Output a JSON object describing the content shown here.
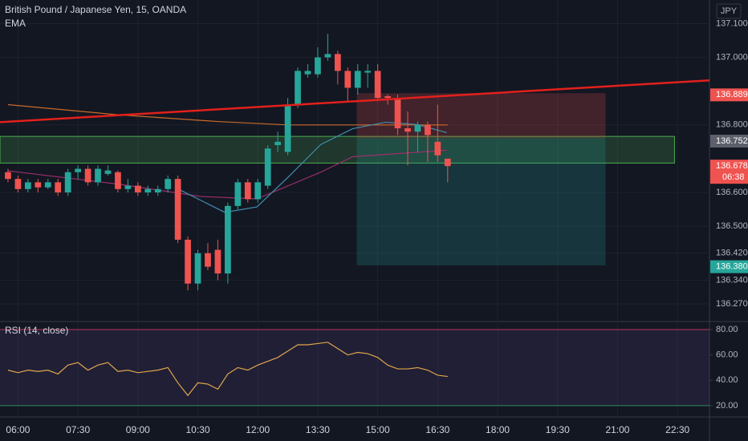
{
  "chart_data": {
    "type": "candlestick",
    "title": "British Pound / Japanese Yen, 15, OANDA",
    "indicator": "EMA",
    "currency": "JPY",
    "up_color": "#26a69a",
    "down_color": "#ef5350",
    "x": [
      -1,
      0,
      1,
      2,
      3,
      4,
      5,
      6,
      7,
      8,
      9,
      10,
      11,
      12,
      13,
      14,
      15,
      16,
      17,
      18,
      19,
      20,
      21,
      22,
      23,
      24,
      25,
      26,
      27,
      28,
      29,
      30,
      31,
      32,
      33,
      34,
      35,
      36,
      37,
      38,
      39,
      40,
      41,
      42,
      43
    ],
    "open": [
      136.66,
      136.64,
      136.61,
      136.63,
      136.615,
      136.63,
      136.6,
      136.66,
      136.67,
      136.63,
      136.655,
      136.66,
      136.61,
      136.62,
      136.6,
      136.6,
      136.61,
      136.64,
      136.46,
      136.33,
      136.42,
      136.43,
      136.36,
      136.56,
      136.63,
      136.58,
      136.62,
      136.74,
      136.72,
      136.86,
      136.95,
      136.95,
      137.0,
      137.01,
      136.96,
      136.91,
      136.955,
      136.96,
      136.885,
      136.88,
      136.79,
      136.78,
      136.8,
      136.75,
      136.7
    ],
    "high": [
      136.67,
      136.65,
      136.64,
      136.64,
      136.64,
      136.64,
      136.67,
      136.68,
      136.68,
      136.68,
      136.68,
      136.665,
      136.64,
      136.63,
      136.62,
      136.62,
      136.65,
      136.65,
      136.47,
      136.43,
      136.45,
      136.46,
      136.57,
      136.64,
      136.64,
      136.64,
      136.74,
      136.78,
      136.88,
      136.97,
      136.98,
      137.03,
      137.07,
      137.02,
      136.97,
      136.98,
      136.98,
      136.98,
      136.89,
      136.89,
      136.84,
      136.81,
      136.81,
      136.86,
      136.7
    ],
    "low": [
      136.63,
      136.6,
      136.6,
      136.6,
      136.61,
      136.59,
      136.59,
      136.64,
      136.62,
      136.62,
      136.65,
      136.6,
      136.6,
      136.59,
      136.59,
      136.59,
      136.6,
      136.45,
      136.31,
      136.31,
      136.37,
      136.34,
      136.33,
      136.55,
      136.57,
      136.57,
      136.61,
      136.72,
      136.71,
      136.85,
      136.94,
      136.94,
      136.99,
      136.92,
      136.87,
      136.89,
      136.91,
      136.87,
      136.86,
      136.77,
      136.68,
      136.72,
      136.69,
      136.69,
      136.63
    ],
    "close": [
      136.64,
      136.61,
      136.63,
      136.615,
      136.63,
      136.6,
      136.66,
      136.67,
      136.63,
      136.67,
      136.665,
      136.61,
      136.62,
      136.6,
      136.61,
      136.61,
      136.64,
      136.46,
      136.33,
      136.42,
      136.38,
      136.36,
      136.56,
      136.63,
      136.58,
      136.63,
      136.73,
      136.75,
      136.86,
      136.96,
      136.96,
      137.0,
      137.01,
      136.96,
      136.91,
      136.96,
      136.96,
      136.88,
      136.88,
      136.79,
      136.78,
      136.8,
      136.77,
      136.71,
      136.678
    ],
    "overlays": [
      {
        "color": "#c86a2a",
        "x": [
          -1,
          10,
          20,
          27,
          35,
          43
        ],
        "values": [
          136.86,
          136.83,
          136.81,
          136.8,
          136.8,
          136.8
        ]
      },
      {
        "color": "#9c2f6e",
        "x": [
          -1,
          10.2,
          18.3,
          23.9,
          30.3,
          33.5,
          42.9
        ],
        "values": [
          136.664,
          136.624,
          136.588,
          136.581,
          136.66,
          136.706,
          136.725
        ]
      },
      {
        "color": "#3f8fb0",
        "x": [
          15.9,
          20.7,
          23.9,
          27.1,
          30.3,
          33.5,
          36.8,
          40,
          42.9
        ],
        "values": [
          136.612,
          136.541,
          136.557,
          136.647,
          136.742,
          136.789,
          136.808,
          136.801,
          136.777
        ]
      }
    ],
    "trendline": {
      "color": "#e3201b",
      "x": [
        -1.8,
        69.2
      ],
      "values": [
        136.808,
        136.932
      ]
    },
    "zones": [
      {
        "fill": "rgba(76,175,80,0.22)",
        "stroke": "#4caf50",
        "x": [
          -1.8,
          65.7
        ],
        "y": [
          136.687,
          136.766
        ]
      },
      {
        "fill": "rgba(239,83,80,0.22)",
        "stroke": "none",
        "x": [
          33.9,
          58.8
        ],
        "y": [
          136.761,
          136.894
        ]
      },
      {
        "fill": "rgba(38,166,154,0.22)",
        "stroke": "none",
        "x": [
          33.9,
          58.8
        ],
        "y": [
          136.384,
          136.761
        ]
      }
    ],
    "price_labels": [
      {
        "value": 136.889,
        "label": "136.889",
        "color": "#ef5350"
      },
      {
        "value": 136.752,
        "label": "136.752",
        "color": "#5d606b"
      },
      {
        "value": 136.678,
        "label": "136.678",
        "color": "#ef5350",
        "countdown": "06:38"
      },
      {
        "value": 136.38,
        "label": "136.380",
        "color": "#26a69a"
      }
    ],
    "xlim": [
      -1.8,
      69.2
    ],
    "xticks": [
      {
        "value": 0,
        "label": "06:00"
      },
      {
        "value": 6,
        "label": "07:30"
      },
      {
        "value": 12,
        "label": "09:00"
      },
      {
        "value": 18,
        "label": "10:30"
      },
      {
        "value": 24,
        "label": "12:00"
      },
      {
        "value": 30,
        "label": "13:30"
      },
      {
        "value": 36,
        "label": "15:00"
      },
      {
        "value": 42,
        "label": "16:30"
      },
      {
        "value": 48,
        "label": "18:00"
      },
      {
        "value": 54,
        "label": "19:30"
      },
      {
        "value": 60,
        "label": "21:00"
      },
      {
        "value": 66,
        "label": "22:30"
      }
    ],
    "ylim": [
      136.22,
      137.17
    ],
    "yticks": [
      {
        "value": 137.1,
        "label": "137.100"
      },
      {
        "value": 137.0,
        "label": "137.000"
      },
      {
        "value": 136.8,
        "label": "136.800"
      },
      {
        "value": 136.6,
        "label": "136.600"
      },
      {
        "value": 136.5,
        "label": "136.500"
      },
      {
        "value": 136.42,
        "label": "136.420"
      },
      {
        "value": 136.34,
        "label": "136.340"
      },
      {
        "value": 136.27,
        "label": "136.270"
      }
    ],
    "rsi": {
      "title": "RSI (14, close)",
      "color": "#e0a64a",
      "ylim": [
        11.1,
        85.7
      ],
      "yticks": [
        {
          "value": 80,
          "label": "80.00"
        },
        {
          "value": 60,
          "label": "60.00"
        },
        {
          "value": 40,
          "label": "40.00"
        },
        {
          "value": 20,
          "label": "20.00"
        }
      ],
      "bands": [
        80,
        20
      ],
      "values": [
        48,
        46,
        48,
        47,
        48,
        45,
        52,
        54,
        48,
        52,
        54,
        47,
        48,
        46,
        47,
        48,
        50,
        38,
        28,
        38,
        37,
        33,
        45,
        50,
        48,
        52,
        55,
        58,
        63,
        68,
        68,
        69,
        70,
        65,
        60,
        62,
        61,
        58,
        52,
        49,
        49,
        50,
        48,
        44,
        43
      ]
    }
  }
}
